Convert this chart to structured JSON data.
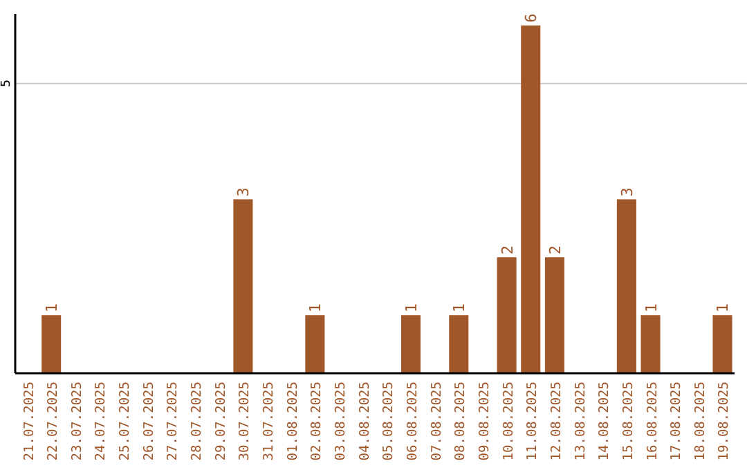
{
  "chart_data": {
    "type": "bar",
    "categories": [
      "21.07.2025",
      "22.07.2025",
      "23.07.2025",
      "24.07.2025",
      "25.07.2025",
      "26.07.2025",
      "27.07.2025",
      "28.07.2025",
      "29.07.2025",
      "30.07.2025",
      "31.07.2025",
      "01.08.2025",
      "02.08.2025",
      "03.08.2025",
      "04.08.2025",
      "05.08.2025",
      "06.08.2025",
      "07.08.2025",
      "08.08.2025",
      "09.08.2025",
      "10.08.2025",
      "11.08.2025",
      "12.08.2025",
      "13.08.2025",
      "14.08.2025",
      "15.08.2025",
      "16.08.2025",
      "17.08.2025",
      "18.08.2025",
      "19.08.2025"
    ],
    "values": [
      null,
      1,
      null,
      null,
      null,
      null,
      null,
      null,
      null,
      3,
      null,
      null,
      1,
      null,
      null,
      null,
      1,
      null,
      1,
      null,
      2,
      6,
      2,
      null,
      null,
      3,
      1,
      null,
      null,
      1
    ],
    "color": "#a0572a",
    "ylim": [
      0,
      6.2
    ],
    "yticks": [
      5
    ],
    "grid": "y",
    "data_labels": true
  }
}
